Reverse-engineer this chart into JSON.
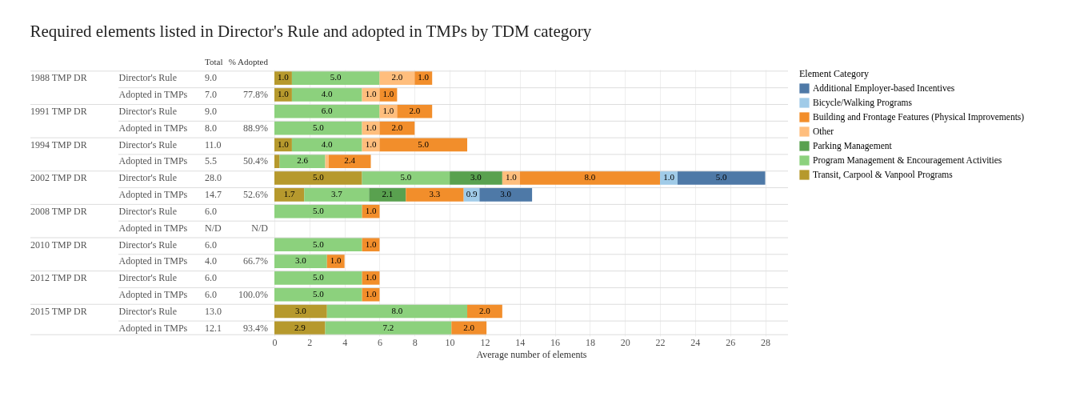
{
  "chart_data": {
    "type": "bar",
    "orientation": "horizontal",
    "stacked": true,
    "title": "Required elements listed in Director's Rule and adopted in TMPs by TDM category",
    "xlabel": "Average number of elements",
    "legend_title": "Element Category",
    "legend": "right",
    "grid": true,
    "categories": [
      "Director's Rule",
      "Adopted in TMPs",
      "Director's Rule",
      "Adopted in TMPs",
      "Director's Rule",
      "Adopted in TMPs",
      "Director's Rule",
      "Adopted in TMPs",
      "Director's Rule",
      "Adopted in TMPs",
      "Director's Rule",
      "Adopted in TMPs",
      "Director's Rule",
      "Adopted in TMPs",
      "Director's Rule",
      "Adopted in TMPs"
    ],
    "xlim": [
      0,
      29.3
    ],
    "xticks": [
      0,
      2,
      4,
      6,
      8,
      10,
      12,
      14,
      16,
      18,
      20,
      22,
      24,
      26,
      28
    ],
    "series": [
      {
        "name": "Transit, Carpool & Vanpool Programs",
        "color": "#b6992d",
        "values": [
          1,
          1,
          null,
          null,
          1,
          0.3,
          5,
          1.7,
          null,
          null,
          null,
          null,
          null,
          null,
          3,
          2.9
        ],
        "value_labels": [
          "1.0",
          "1.0",
          null,
          null,
          "1.0",
          null,
          "5.0",
          "1.7",
          null,
          null,
          null,
          null,
          null,
          null,
          "3.0",
          "2.9"
        ]
      },
      {
        "name": "Program Management & Encouragement Activities",
        "color": "#8cd17d",
        "values": [
          5,
          4,
          6,
          5,
          4,
          2.6,
          5,
          3.7,
          5,
          null,
          5,
          3,
          5,
          5,
          8,
          7.2
        ],
        "value_labels": [
          "5.0",
          "4.0",
          "6.0",
          "5.0",
          "4.0",
          "2.6",
          "5.0",
          "3.7",
          "5.0",
          null,
          "5.0",
          "3.0",
          "5.0",
          "5.0",
          "8.0",
          "7.2"
        ]
      },
      {
        "name": "Parking Management",
        "color": "#59a14f",
        "values": [
          null,
          null,
          null,
          null,
          null,
          null,
          3,
          2.1,
          null,
          null,
          null,
          null,
          null,
          null,
          null,
          null
        ],
        "value_labels": [
          null,
          null,
          null,
          null,
          null,
          null,
          "3.0",
          "2.1",
          null,
          null,
          null,
          null,
          null,
          null,
          null,
          null
        ]
      },
      {
        "name": "Other",
        "color": "#ffbe7d",
        "values": [
          2,
          1,
          1,
          1,
          1,
          0.2,
          1,
          null,
          null,
          null,
          null,
          null,
          null,
          null,
          null,
          null
        ],
        "value_labels": [
          "2.0",
          "1.0",
          "1.0",
          "1.0",
          "1.0",
          null,
          "1.0",
          null,
          null,
          null,
          null,
          null,
          null,
          null,
          null,
          null
        ]
      },
      {
        "name": "Building and Frontage Features (Physical Improvements)",
        "color": "#f28e2b",
        "values": [
          1,
          1,
          2,
          2,
          5,
          2.4,
          8,
          3.3,
          1,
          null,
          1,
          1,
          1,
          1,
          2,
          2
        ],
        "value_labels": [
          "1.0",
          "1.0",
          "2.0",
          "2.0",
          "5.0",
          "2.4",
          "8.0",
          "3.3",
          "1.0",
          null,
          "1.0",
          "1.0",
          "1.0",
          "1.0",
          "2.0",
          "2.0"
        ]
      },
      {
        "name": "Bicycle/Walking Programs",
        "color": "#a0cbe8",
        "values": [
          null,
          null,
          null,
          null,
          null,
          null,
          1,
          0.9,
          null,
          null,
          null,
          null,
          null,
          null,
          null,
          null
        ],
        "value_labels": [
          null,
          null,
          null,
          null,
          null,
          null,
          "1.0",
          "0.9",
          null,
          null,
          null,
          null,
          null,
          null,
          null,
          null
        ]
      },
      {
        "name": "Additional Employer-based Incentives",
        "color": "#4e79a7",
        "values": [
          null,
          null,
          null,
          null,
          null,
          null,
          5,
          3.0,
          null,
          null,
          null,
          null,
          null,
          null,
          null,
          null
        ],
        "value_labels": [
          null,
          null,
          null,
          null,
          null,
          null,
          "5.0",
          "3.0",
          null,
          null,
          null,
          null,
          null,
          null,
          null,
          null
        ]
      }
    ],
    "annotations": [
      "Total",
      "% Adopted",
      "1988 TMP DR",
      "1991 TMP DR",
      "1994 TMP DR",
      "2002 TMP DR",
      "2008 TMP DR",
      "2010 TMP DR",
      "2012 TMP DR",
      "2015 TMP DR",
      "9.0",
      "7.0",
      "9.0",
      "8.0",
      "11.0",
      "5.5",
      "28.0",
      "14.7",
      "6.0",
      "N/D",
      "6.0",
      "4.0",
      "6.0",
      "6.0",
      "13.0",
      "12.1",
      "77.8%",
      "88.9%",
      "50.4%",
      "52.6%",
      "N/D",
      "66.7%",
      "100.0%",
      "93.4%"
    ]
  }
}
